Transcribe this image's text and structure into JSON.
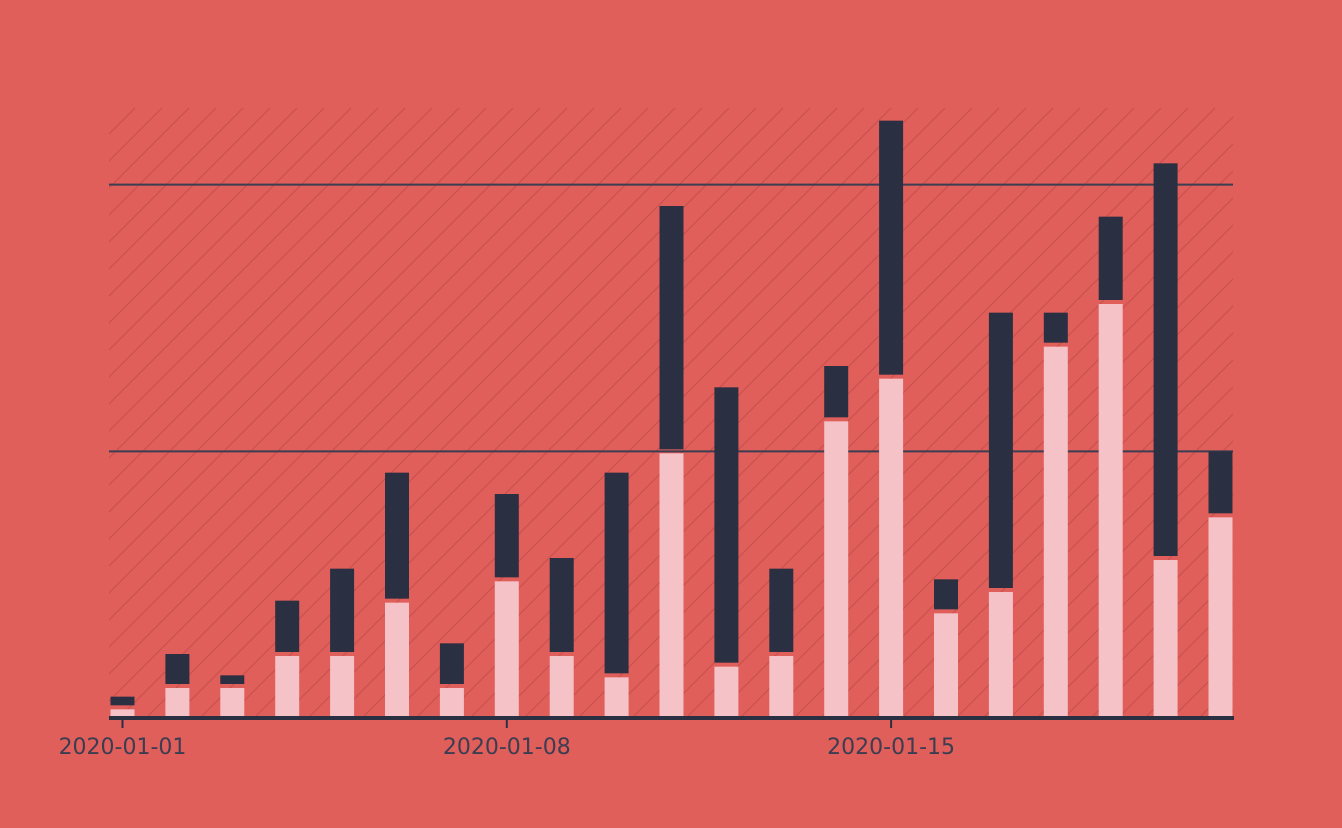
{
  "chart_data": {
    "type": "bar",
    "stacked": true,
    "x_axis_type": "date",
    "categories": [
      "2020-01-01",
      "2020-01-02",
      "2020-01-03",
      "2020-01-04",
      "2020-01-05",
      "2020-01-06",
      "2020-01-07",
      "2020-01-08",
      "2020-01-09",
      "2020-01-10",
      "2020-01-11",
      "2020-01-12",
      "2020-01-13",
      "2020-01-14",
      "2020-01-15",
      "2020-01-16",
      "2020-01-17",
      "2020-01-18",
      "2020-01-19",
      "2020-01-20",
      "2020-01-21"
    ],
    "x_tick_labels": [
      "2020-01-01",
      "2020-01-08",
      "2020-01-15"
    ],
    "series": [
      {
        "color": "#f5c2c7",
        "values": [
          1,
          3,
          3,
          6,
          6,
          11,
          3,
          13,
          6,
          4,
          25,
          5,
          6,
          28,
          32,
          10,
          12,
          35,
          39,
          15,
          19
        ]
      },
      {
        "color": "#2b2f42",
        "values": [
          1,
          3,
          1,
          5,
          8,
          12,
          4,
          8,
          9,
          19,
          23,
          26,
          8,
          5,
          24,
          3,
          26,
          3,
          8,
          37,
          6
        ]
      }
    ],
    "ylim": [
      0,
      57
    ],
    "y_gridlines": [
      25,
      50
    ],
    "y_tick_labels": "hidden",
    "background_hatch": true,
    "legend": "none",
    "title": "",
    "xlabel": "",
    "ylabel": "",
    "colors": {
      "background": "#e05f5a",
      "gridline": "#3b3d52",
      "axis": "#2b2f42",
      "tick_label": "#3b3d52"
    }
  }
}
